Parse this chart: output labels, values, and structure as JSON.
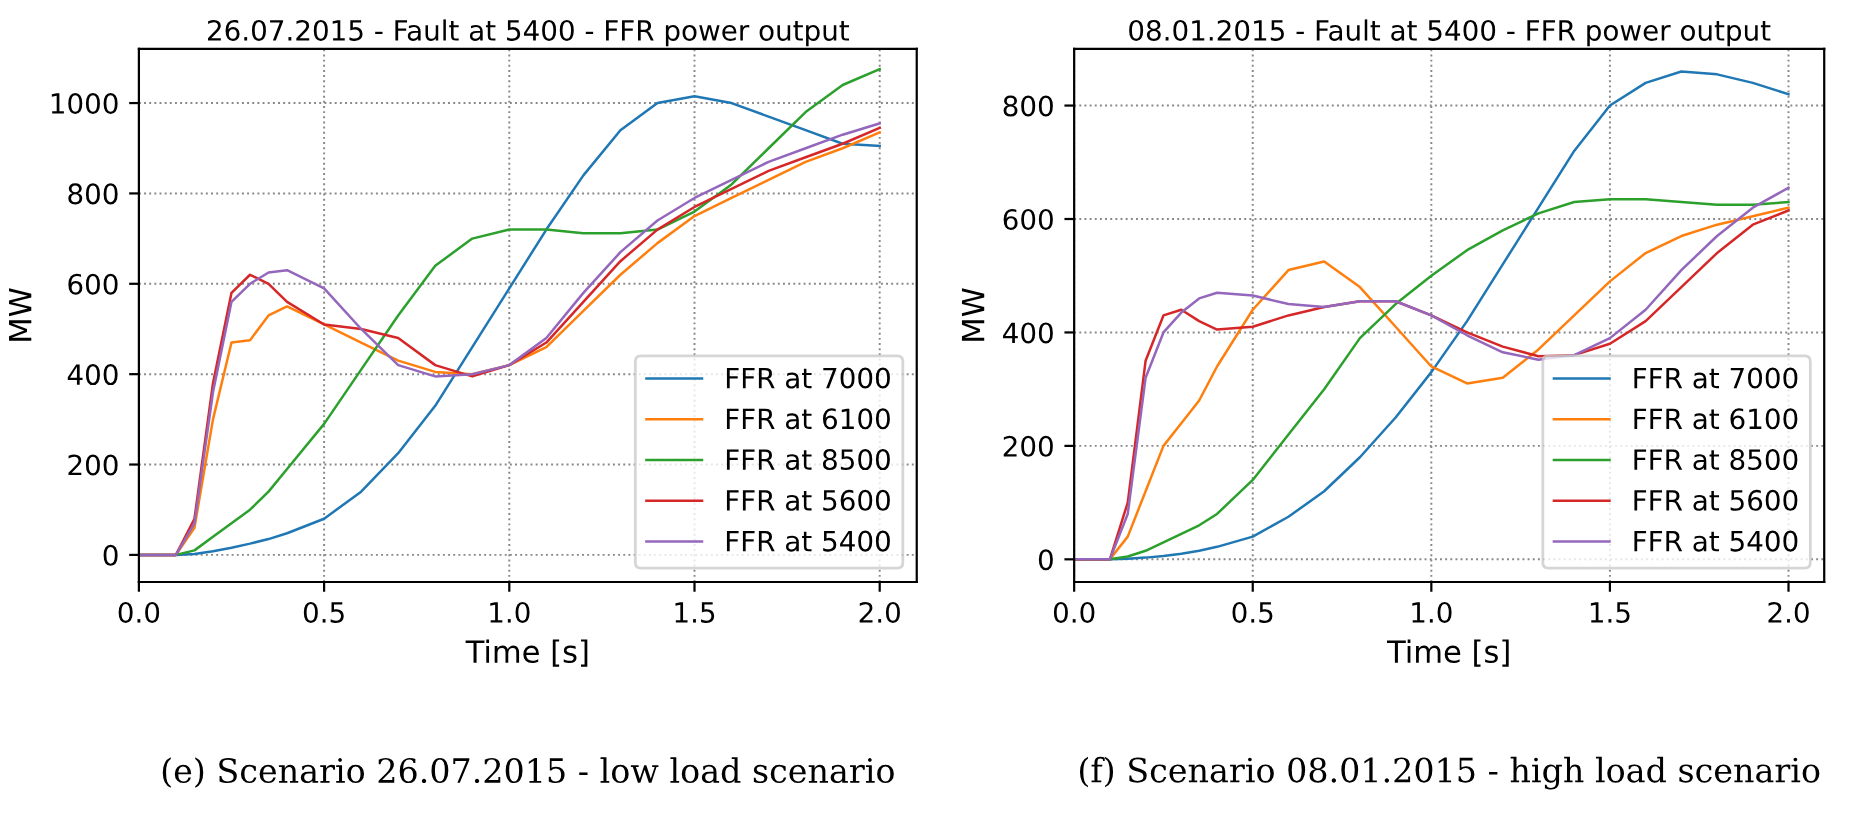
{
  "chart_data": [
    {
      "type": "line",
      "title": "26.07.2015 - Fault at 5400 - FFR power output",
      "xlabel": "Time [s]",
      "ylabel": "MW",
      "annotations": [
        "(e) Scenario 26.07.2015 - low load scenario"
      ],
      "x": [
        0,
        0.1,
        0.15,
        0.2,
        0.25,
        0.3,
        0.35,
        0.4,
        0.5,
        0.6,
        0.7,
        0.8,
        0.9,
        1.0,
        1.1,
        1.2,
        1.3,
        1.4,
        1.5,
        1.6,
        1.7,
        1.8,
        1.9,
        2.0
      ],
      "series": [
        {
          "name": "FFR at 7000",
          "color": "#1f77b4",
          "values": [
            0,
            0,
            2,
            8,
            16,
            25,
            35,
            48,
            80,
            140,
            225,
            330,
            460,
            590,
            720,
            840,
            940,
            1000,
            1015,
            1000,
            970,
            940,
            910,
            905
          ]
        },
        {
          "name": "FFR at 6100",
          "color": "#ff7f0e",
          "values": [
            0,
            0,
            60,
            300,
            470,
            475,
            530,
            550,
            510,
            470,
            430,
            405,
            400,
            420,
            460,
            540,
            620,
            690,
            750,
            790,
            830,
            870,
            900,
            935
          ]
        },
        {
          "name": "FFR at 8500",
          "color": "#2ca02c",
          "values": [
            0,
            0,
            10,
            40,
            70,
            100,
            140,
            190,
            290,
            410,
            530,
            640,
            700,
            720,
            720,
            712,
            712,
            720,
            760,
            820,
            900,
            980,
            1040,
            1075
          ]
        },
        {
          "name": "FFR at 5600",
          "color": "#d62728",
          "values": [
            0,
            0,
            80,
            380,
            580,
            620,
            600,
            560,
            510,
            500,
            480,
            420,
            395,
            420,
            470,
            560,
            650,
            720,
            770,
            810,
            850,
            880,
            910,
            945
          ]
        },
        {
          "name": "FFR at 5400",
          "color": "#9467bd",
          "values": [
            0,
            0,
            70,
            360,
            560,
            600,
            625,
            630,
            590,
            500,
            420,
            395,
            400,
            420,
            480,
            580,
            670,
            740,
            790,
            830,
            870,
            900,
            930,
            955
          ]
        }
      ],
      "xlim": [
        0,
        2.1
      ],
      "xticks": [
        {
          "value": 0,
          "label": "0.0"
        },
        {
          "value": 0.5,
          "label": "0.5"
        },
        {
          "value": 1,
          "label": "1.0"
        },
        {
          "value": 1.5,
          "label": "1.5"
        },
        {
          "value": 2,
          "label": "2.0"
        }
      ],
      "ylim": [
        -60,
        1120
      ],
      "yticks": [
        0,
        200,
        400,
        600,
        800,
        1000
      ],
      "grid": true,
      "legend": "bottom right"
    },
    {
      "type": "line",
      "title": "08.01.2015 - Fault at 5400 - FFR power output",
      "xlabel": "Time [s]",
      "ylabel": "MW",
      "annotations": [
        "(f) Scenario 08.01.2015 - high load scenario"
      ],
      "x": [
        0,
        0.1,
        0.15,
        0.2,
        0.25,
        0.3,
        0.35,
        0.4,
        0.5,
        0.6,
        0.7,
        0.8,
        0.9,
        1.0,
        1.1,
        1.2,
        1.3,
        1.4,
        1.5,
        1.6,
        1.7,
        1.8,
        1.9,
        2.0
      ],
      "series": [
        {
          "name": "FFR at 7000",
          "color": "#1f77b4",
          "values": [
            0,
            0,
            1,
            3,
            6,
            10,
            15,
            22,
            40,
            75,
            120,
            180,
            250,
            330,
            420,
            520,
            620,
            720,
            800,
            840,
            860,
            855,
            840,
            820
          ]
        },
        {
          "name": "FFR at 6100",
          "color": "#ff7f0e",
          "values": [
            0,
            0,
            40,
            120,
            200,
            240,
            280,
            340,
            440,
            510,
            525,
            480,
            410,
            340,
            310,
            320,
            370,
            430,
            490,
            540,
            570,
            590,
            605,
            620
          ]
        },
        {
          "name": "FFR at 8500",
          "color": "#2ca02c",
          "values": [
            0,
            0,
            5,
            15,
            30,
            45,
            60,
            80,
            140,
            220,
            300,
            390,
            450,
            500,
            545,
            580,
            610,
            630,
            635,
            635,
            630,
            625,
            625,
            630
          ]
        },
        {
          "name": "FFR at 5600",
          "color": "#d62728",
          "values": [
            0,
            0,
            100,
            350,
            430,
            440,
            420,
            405,
            410,
            430,
            445,
            455,
            455,
            430,
            400,
            375,
            358,
            360,
            380,
            420,
            480,
            540,
            590,
            615
          ]
        },
        {
          "name": "FFR at 5400",
          "color": "#9467bd",
          "values": [
            0,
            0,
            80,
            320,
            400,
            435,
            460,
            470,
            465,
            450,
            445,
            455,
            455,
            430,
            395,
            365,
            352,
            360,
            390,
            440,
            510,
            570,
            620,
            655
          ]
        }
      ],
      "xlim": [
        0,
        2.1
      ],
      "xticks": [
        {
          "value": 0,
          "label": "0.0"
        },
        {
          "value": 0.5,
          "label": "0.5"
        },
        {
          "value": 1,
          "label": "1.0"
        },
        {
          "value": 1.5,
          "label": "1.5"
        },
        {
          "value": 2,
          "label": "2.0"
        }
      ],
      "ylim": [
        -40,
        900
      ],
      "yticks": [
        0,
        200,
        400,
        600,
        800
      ],
      "grid": true,
      "legend": "bottom right"
    }
  ]
}
